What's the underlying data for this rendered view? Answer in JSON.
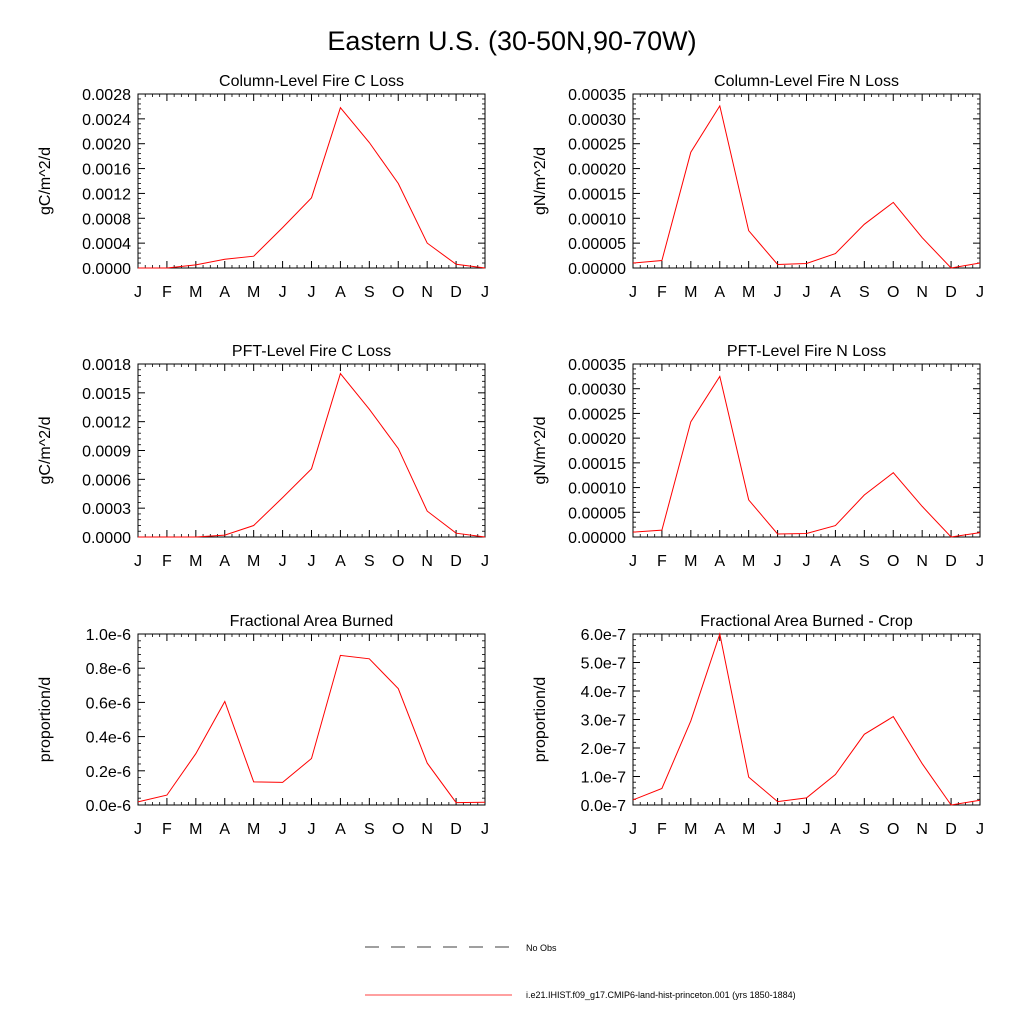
{
  "figure": {
    "title": "Eastern U.S. (30-50N,90-70W)",
    "months": [
      "J",
      "F",
      "M",
      "A",
      "M",
      "J",
      "J",
      "A",
      "S",
      "O",
      "N",
      "D",
      "J"
    ],
    "line_color": "#ff0000"
  },
  "legend": {
    "obs_label": "No Obs",
    "model_label": "i.e21.IHIST.f09_g17.CMIP6-land-hist-princeton.001 (yrs 1850-1884)"
  },
  "chart_data": [
    {
      "type": "line",
      "title": "Column-Level Fire C Loss",
      "ylabel": "gC/m^2/d",
      "ylim": [
        0,
        0.0028
      ],
      "yticks": [
        "0.0000",
        "0.0004",
        "0.0008",
        "0.0012",
        "0.0016",
        "0.0020",
        "0.0024",
        "0.0028"
      ],
      "x": [
        "J",
        "F",
        "M",
        "A",
        "M",
        "J",
        "J",
        "A",
        "S",
        "O",
        "N",
        "D",
        "J"
      ],
      "values": [
        0.0,
        0.0,
        5e-05,
        0.00014,
        0.00019,
        0.00065,
        0.00113,
        0.00258,
        0.00202,
        0.00136,
        0.0004,
        6e-05,
        0.0
      ]
    },
    {
      "type": "line",
      "title": "Column-Level Fire N Loss",
      "ylabel": "gN/m^2/d",
      "ylim": [
        0,
        0.00035
      ],
      "yticks": [
        "0.00000",
        "0.00005",
        "0.00010",
        "0.00015",
        "0.00020",
        "0.00025",
        "0.00030",
        "0.00035"
      ],
      "x": [
        "J",
        "F",
        "M",
        "A",
        "M",
        "J",
        "J",
        "A",
        "S",
        "O",
        "N",
        "D",
        "J"
      ],
      "values": [
        1e-05,
        1.5e-05,
        0.000233,
        0.000326,
        7.5e-05,
        7e-06,
        9e-06,
        2.9e-05,
        8.8e-05,
        0.000132,
        6.1e-05,
        0.0,
        1e-05
      ]
    },
    {
      "type": "line",
      "title": "PFT-Level Fire C Loss",
      "ylabel": "gC/m^2/d",
      "ylim": [
        0,
        0.0018
      ],
      "yticks": [
        "0.0000",
        "0.0003",
        "0.0006",
        "0.0009",
        "0.0012",
        "0.0015",
        "0.0018"
      ],
      "x": [
        "J",
        "F",
        "M",
        "A",
        "M",
        "J",
        "J",
        "A",
        "S",
        "O",
        "N",
        "D",
        "J"
      ],
      "values": [
        0.0,
        0.0,
        0.0,
        2e-05,
        0.00012,
        0.00041,
        0.00071,
        0.0017,
        0.00133,
        0.00092,
        0.00027,
        4e-05,
        0.0
      ]
    },
    {
      "type": "line",
      "title": "PFT-Level Fire N Loss",
      "ylabel": "gN/m^2/d",
      "ylim": [
        0,
        0.00035
      ],
      "yticks": [
        "0.00000",
        "0.00005",
        "0.00010",
        "0.00015",
        "0.00020",
        "0.00025",
        "0.00030",
        "0.00035"
      ],
      "x": [
        "J",
        "F",
        "M",
        "A",
        "M",
        "J",
        "J",
        "A",
        "S",
        "O",
        "N",
        "D",
        "J"
      ],
      "values": [
        1e-05,
        1.4e-05,
        0.000233,
        0.000325,
        7.5e-05,
        6e-06,
        7e-06,
        2.3e-05,
        8.5e-05,
        0.00013,
        6.2e-05,
        0.0,
        9e-06
      ]
    },
    {
      "type": "line",
      "title": "Fractional Area Burned",
      "ylabel": "proportion/d",
      "ylim": [
        0,
        1e-06
      ],
      "yticks": [
        "0.0e-6",
        "0.2e-6",
        "0.4e-6",
        "0.6e-6",
        "0.8e-6",
        "1.0e-6"
      ],
      "x": [
        "J",
        "F",
        "M",
        "A",
        "M",
        "J",
        "J",
        "A",
        "S",
        "O",
        "N",
        "D",
        "J"
      ],
      "values": [
        1.8e-08,
        5.8e-08,
        3e-07,
        6.05e-07,
        1.35e-07,
        1.32e-07,
        2.72e-07,
        8.75e-07,
        8.55e-07,
        6.8e-07,
        2.45e-07,
        1.4e-08,
        1.6e-08
      ]
    },
    {
      "type": "line",
      "title": "Fractional Area Burned - Crop",
      "ylabel": "proportion/d",
      "ylim": [
        0,
        6e-07
      ],
      "yticks": [
        "0.0e-7",
        "1.0e-7",
        "2.0e-7",
        "3.0e-7",
        "4.0e-7",
        "5.0e-7",
        "6.0e-7"
      ],
      "x": [
        "J",
        "F",
        "M",
        "A",
        "M",
        "J",
        "J",
        "A",
        "S",
        "O",
        "N",
        "D",
        "J"
      ],
      "values": [
        1.8e-08,
        5.8e-08,
        2.95e-07,
        6e-07,
        9.8e-08,
        1.2e-08,
        2.5e-08,
        1.07e-07,
        2.48e-07,
        3.1e-07,
        1.45e-07,
        0.0,
        1.7e-08
      ]
    }
  ]
}
